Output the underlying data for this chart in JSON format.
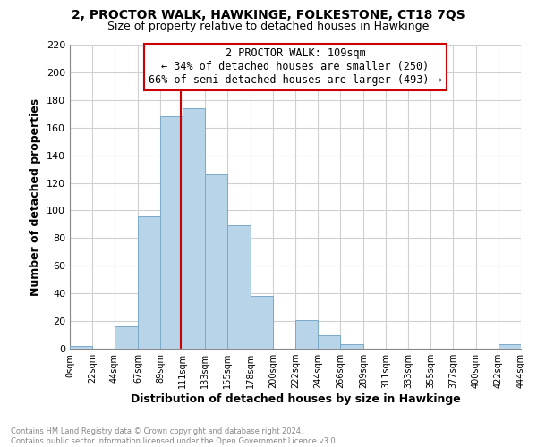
{
  "title_line1": "2, PROCTOR WALK, HAWKINGE, FOLKESTONE, CT18 7QS",
  "title_line2": "Size of property relative to detached houses in Hawkinge",
  "xlabel": "Distribution of detached houses by size in Hawkinge",
  "ylabel": "Number of detached properties",
  "bar_color": "#b8d4e8",
  "bar_edge_color": "#7aaac8",
  "bins": [
    0,
    22,
    44,
    67,
    89,
    111,
    133,
    155,
    178,
    200,
    222,
    244,
    266,
    289,
    311,
    333,
    355,
    377,
    400,
    422,
    444
  ],
  "bin_labels": [
    "0sqm",
    "22sqm",
    "44sqm",
    "67sqm",
    "89sqm",
    "111sqm",
    "133sqm",
    "155sqm",
    "178sqm",
    "200sqm",
    "222sqm",
    "244sqm",
    "266sqm",
    "289sqm",
    "311sqm",
    "333sqm",
    "355sqm",
    "377sqm",
    "400sqm",
    "422sqm",
    "444sqm"
  ],
  "counts": [
    2,
    0,
    16,
    96,
    168,
    174,
    126,
    89,
    38,
    0,
    21,
    10,
    3,
    0,
    0,
    0,
    0,
    0,
    0,
    3
  ],
  "property_line_x": 109,
  "vline_color": "#cc0000",
  "annotation_title": "2 PROCTOR WALK: 109sqm",
  "annotation_line1": "← 34% of detached houses are smaller (250)",
  "annotation_line2": "66% of semi-detached houses are larger (493) →",
  "annotation_box_color": "#ffffff",
  "annotation_box_edge": "#cc0000",
  "ylim": [
    0,
    220
  ],
  "yticks": [
    0,
    20,
    40,
    60,
    80,
    100,
    120,
    140,
    160,
    180,
    200,
    220
  ],
  "footer_line1": "Contains HM Land Registry data © Crown copyright and database right 2024.",
  "footer_line2": "Contains public sector information licensed under the Open Government Licence v3.0.",
  "background_color": "#ffffff",
  "grid_color": "#d0d0d0"
}
